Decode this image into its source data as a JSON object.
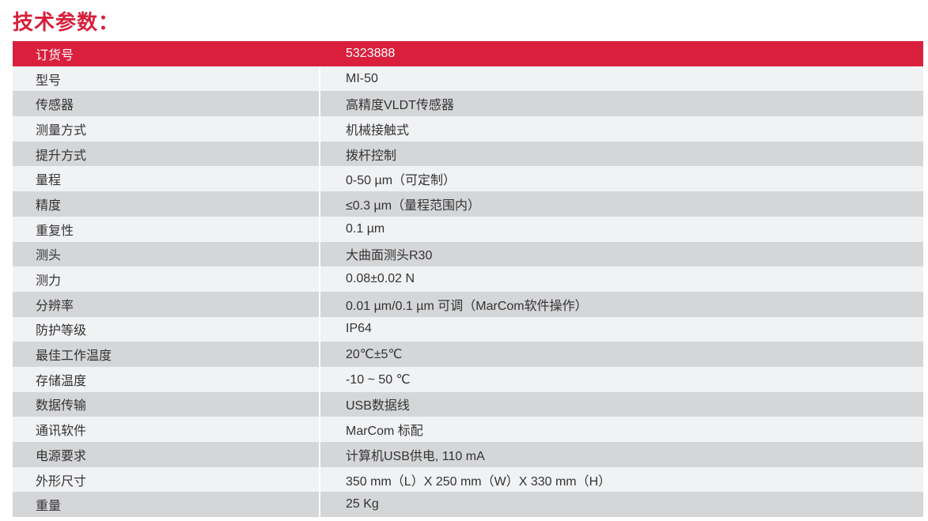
{
  "title": "技术参数：",
  "colors": {
    "accent": "#da1f3d",
    "row_light": "#f1f2f4",
    "row_dark": "#d5d6d8"
  },
  "rows": [
    {
      "key": "订货号",
      "value": "5323888"
    },
    {
      "key": "型号",
      "value": "MI-50"
    },
    {
      "key": "传感器",
      "value": "高精度VLDT传感器"
    },
    {
      "key": "测量方式",
      "value": "机械接触式"
    },
    {
      "key": "提升方式",
      "value": "拨杆控制"
    },
    {
      "key": "量程",
      "value": "0-50 µm（可定制）"
    },
    {
      "key": "精度",
      "value": "≤0.3 µm（量程范围内）"
    },
    {
      "key": "重复性",
      "value": "0.1 µm"
    },
    {
      "key": "测头",
      "value": "大曲面测头R30"
    },
    {
      "key": "测力",
      "value": "0.08±0.02 N"
    },
    {
      "key": "分辨率",
      "value": "0.01 µm/0.1 µm 可调（MarCom软件操作）"
    },
    {
      "key": "防护等级",
      "value": "IP64"
    },
    {
      "key": "最佳工作温度",
      "value": "20℃±5℃"
    },
    {
      "key": "存储温度",
      "value": "-10 ~ 50 ℃"
    },
    {
      "key": "数据传输",
      "value": "USB数据线"
    },
    {
      "key": "通讯软件",
      "value": "MarCom 标配"
    },
    {
      "key": "电源要求",
      "value": "计算机USB供电, 110 mA"
    },
    {
      "key": "外形尺寸",
      "value": "350 mm（L）X 250 mm（W）X 330 mm（H）"
    },
    {
      "key": "重量",
      "value": "25 Kg"
    }
  ]
}
